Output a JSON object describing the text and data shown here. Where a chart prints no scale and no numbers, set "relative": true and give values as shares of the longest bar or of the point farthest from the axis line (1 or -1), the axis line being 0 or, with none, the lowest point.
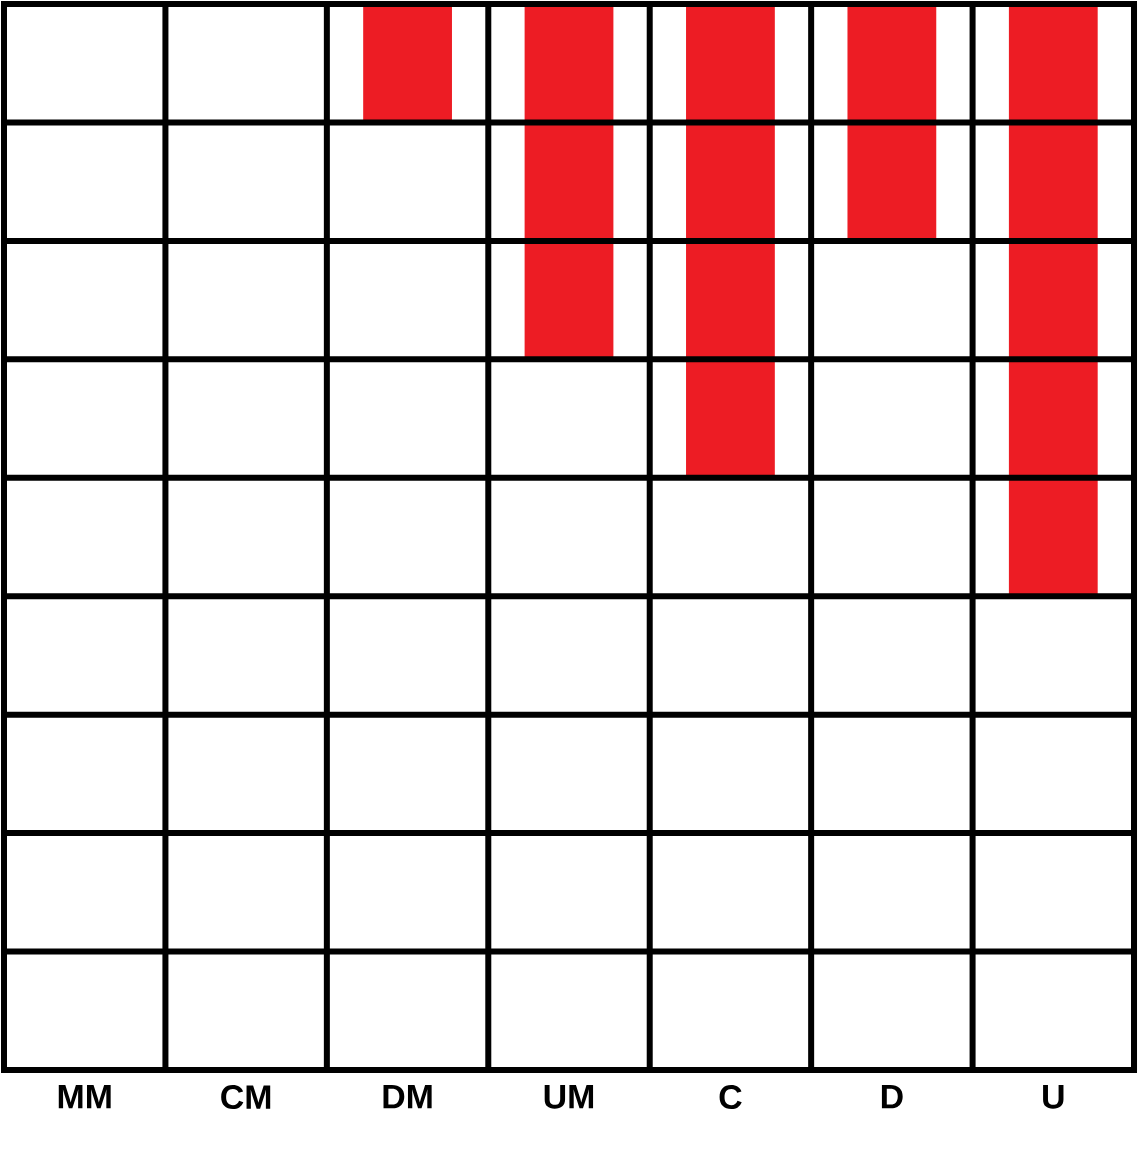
{
  "chart_data": {
    "type": "bar",
    "categories": [
      "MM",
      "CM",
      "DM",
      "UM",
      "C",
      "D",
      "U"
    ],
    "values": [
      0,
      0,
      -0.2,
      -0.6,
      -0.8,
      -0.4,
      -1
    ],
    "relative": true,
    "color": "#ed1c24",
    "grid": true,
    "tick_labels": "x"
  }
}
